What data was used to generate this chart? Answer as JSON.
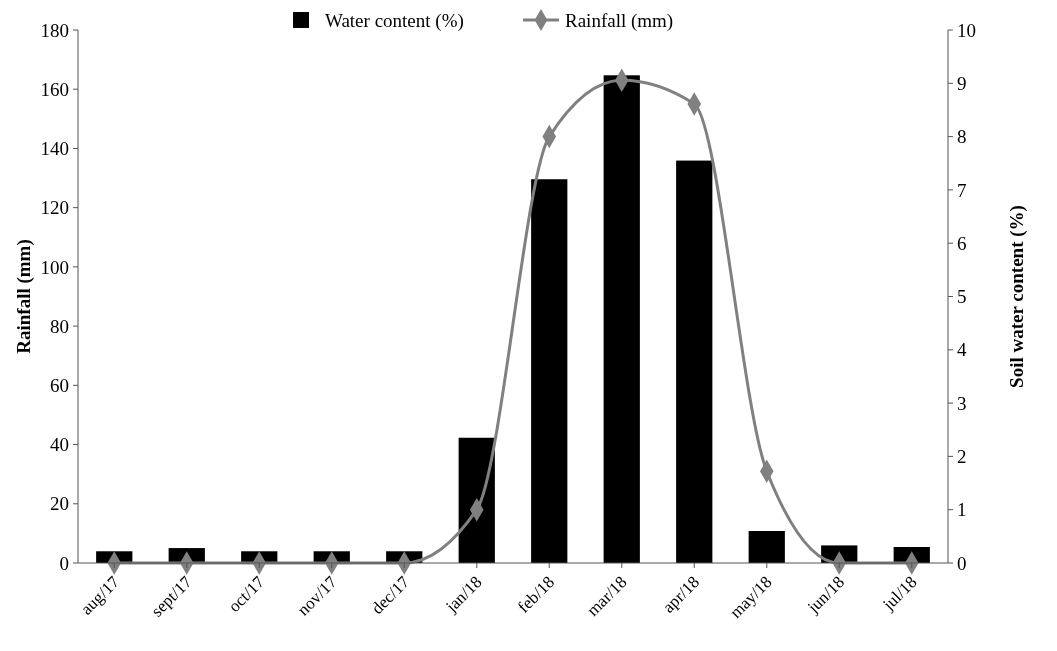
{
  "chart_data": {
    "type": "bar",
    "categories": [
      "aug/17",
      "sept/17",
      "oct/17",
      "nov/17",
      "dec/17",
      "jan/18",
      "feb/18",
      "mar/18",
      "apr/18",
      "may/18",
      "jun/18",
      "jul/18"
    ],
    "series": [
      {
        "name": "Water content (%)",
        "axis": "y2",
        "color": "#000000",
        "values": [
          0.22,
          0.28,
          0.22,
          0.22,
          0.22,
          2.35,
          7.2,
          9.15,
          7.55,
          0.6,
          0.33,
          0.3
        ]
      },
      {
        "name": "Rainfall (mm)",
        "type": "line",
        "color": "#808080",
        "marker": "diamond",
        "values": [
          0,
          0,
          0,
          0,
          0,
          18,
          144,
          163,
          155,
          31,
          0,
          0
        ]
      }
    ],
    "ylabel": "Rainfall (mm)",
    "y2label": "Soil water content (%)",
    "ylim": [
      0,
      180
    ],
    "yticks": [
      0,
      20,
      40,
      60,
      80,
      100,
      120,
      140,
      160,
      180
    ],
    "y2lim": [
      0,
      10
    ],
    "y2ticks": [
      0,
      1,
      2,
      3,
      4,
      5,
      6,
      7,
      8,
      9,
      10
    ],
    "legend": "top",
    "grid": false
  }
}
